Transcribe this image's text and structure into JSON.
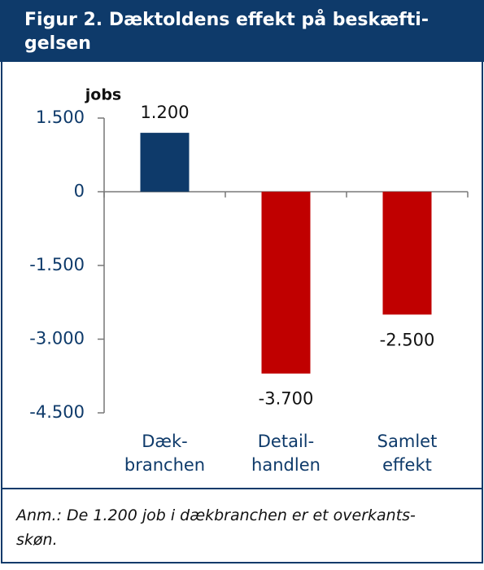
{
  "chart_data": {
    "type": "bar",
    "title": "Figur 2. Dæktoldens effekt på beskæfti-\ngelsen",
    "ylabel": "jobs",
    "categories": [
      "Dæk-\nbranchen",
      "Detail-\nhandlen",
      "Samlet\neffekt"
    ],
    "values": [
      1200,
      -3700,
      -2500
    ],
    "value_labels": [
      "1.200",
      "-3.700",
      "-2.500"
    ],
    "colors": [
      "#0e3a6a",
      "#c00000",
      "#c00000"
    ],
    "ylim": [
      -4500,
      1500
    ],
    "yticks": [
      {
        "value": -4500,
        "label": "-4.500"
      },
      {
        "value": -3000,
        "label": "-3.000"
      },
      {
        "value": -1500,
        "label": "-1.500"
      },
      0,
      {
        "value": 1500,
        "label": "1.500"
      }
    ],
    "note": "Anm.: De 1.200 job i dækbranchen er et overkants-\nskøn."
  }
}
